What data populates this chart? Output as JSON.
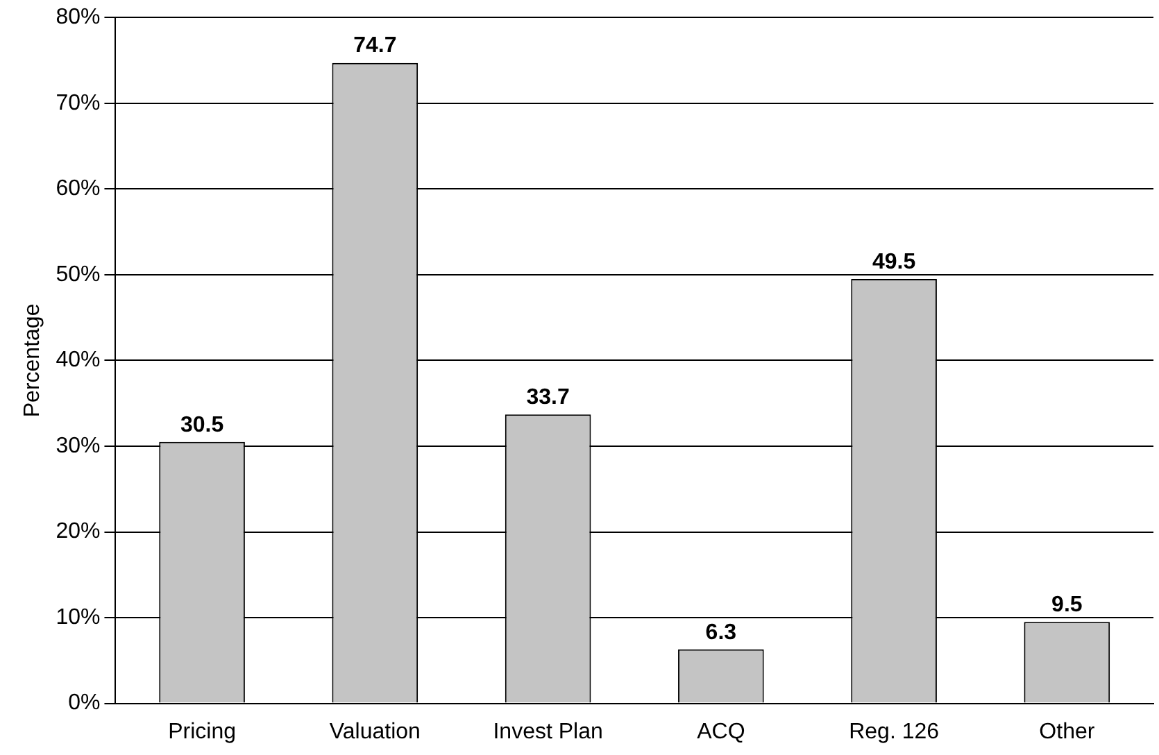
{
  "chart_data": {
    "type": "bar",
    "ylabel": "Percentage",
    "categories": [
      "Pricing",
      "Valuation",
      "Invest Plan",
      "ACQ",
      "Reg. 126",
      "Other"
    ],
    "values": [
      30.5,
      74.7,
      33.7,
      6.3,
      49.5,
      9.5
    ],
    "color": "#c4c4c4",
    "ylim": [
      0,
      80
    ],
    "yticks": [
      {
        "value": 0,
        "label": "0%"
      },
      {
        "value": 10,
        "label": "10%"
      },
      {
        "value": 20,
        "label": "20%"
      },
      {
        "value": 30,
        "label": "30%"
      },
      {
        "value": 40,
        "label": "40%"
      },
      {
        "value": 50,
        "label": "50%"
      },
      {
        "value": 60,
        "label": "60%"
      },
      {
        "value": 70,
        "label": "70%"
      },
      {
        "value": 80,
        "label": "80%"
      }
    ],
    "grid": "y",
    "data_labels": true,
    "legend": false
  }
}
